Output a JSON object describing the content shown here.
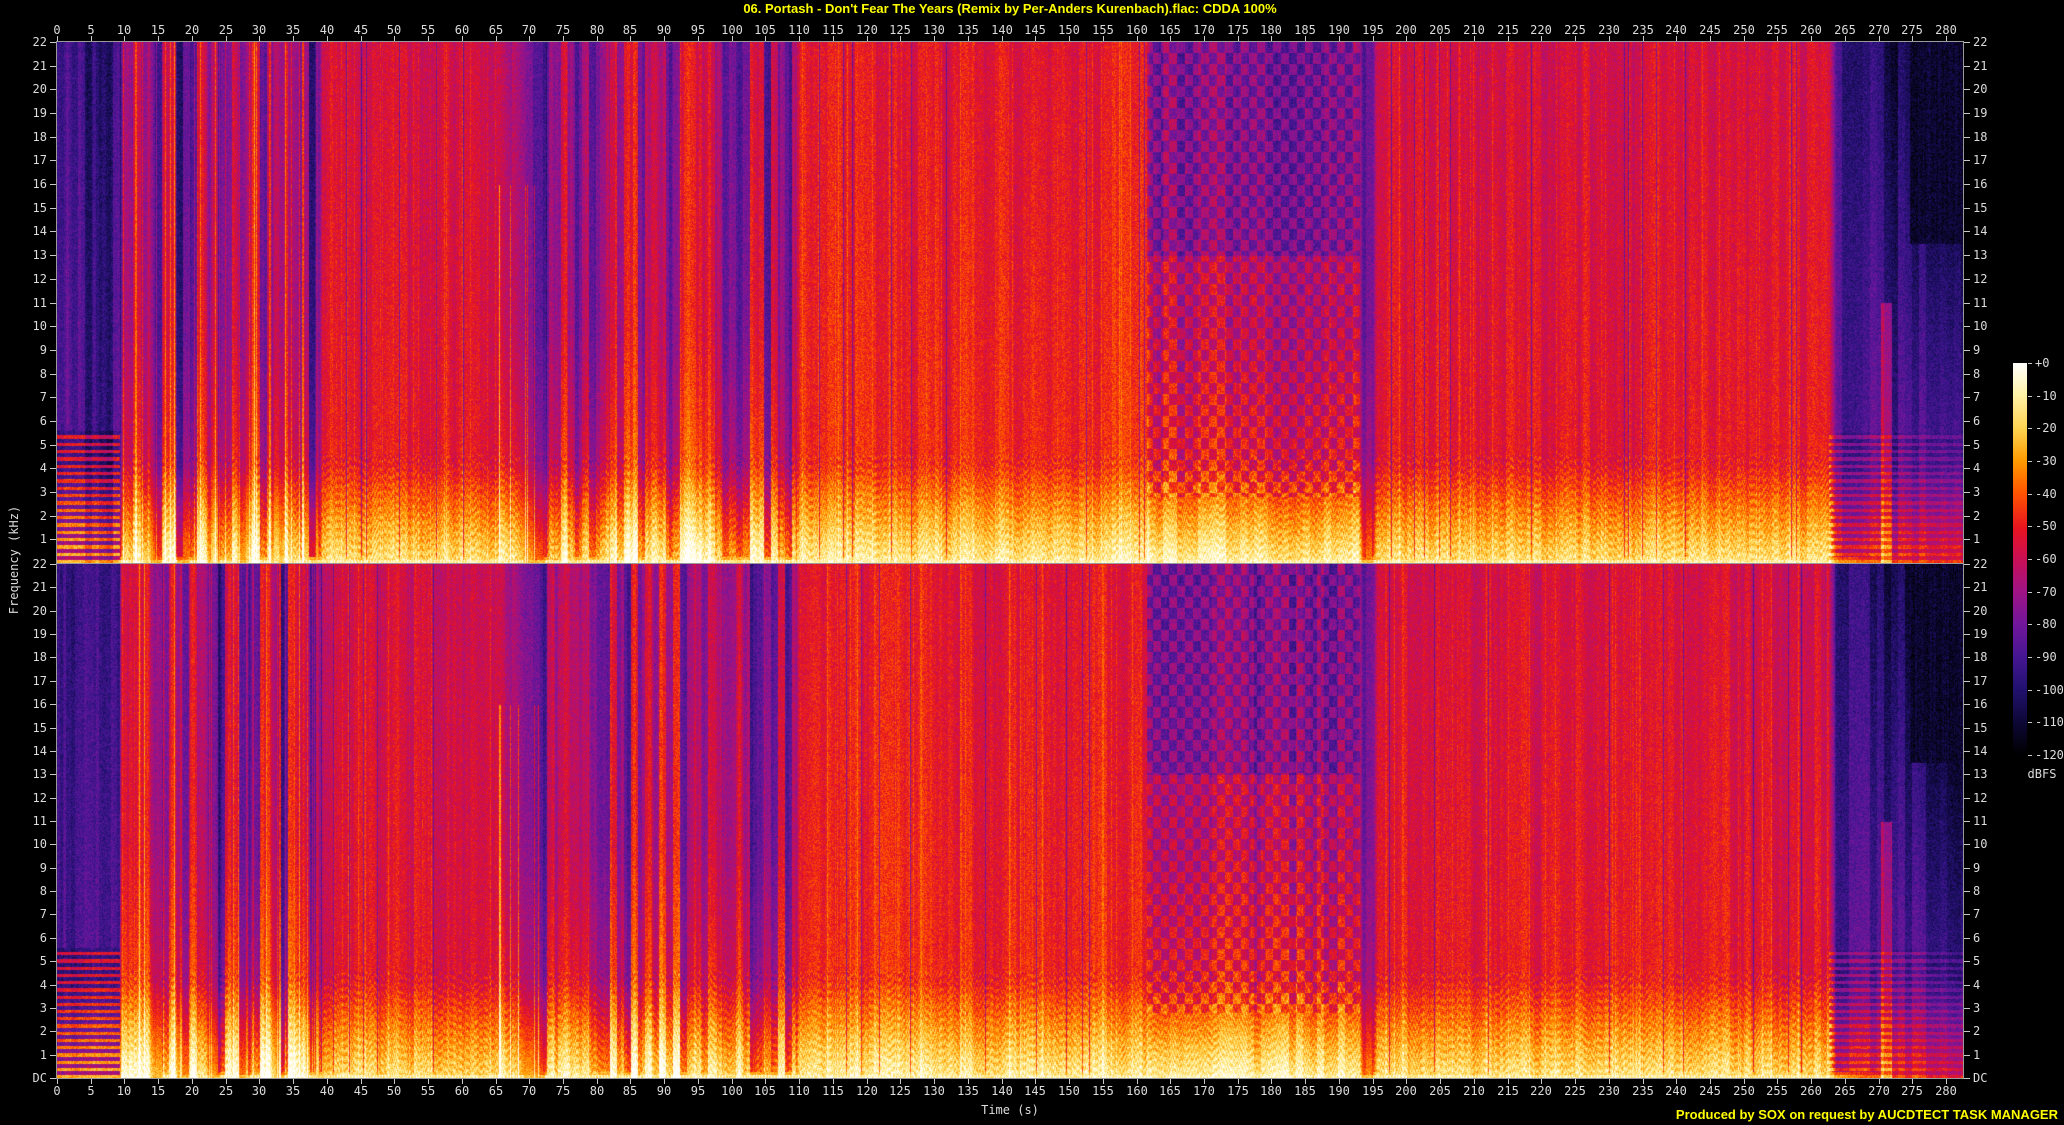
{
  "title": "06. Portash - Don't Fear The Years (Remix by Per-Anders Kurenbach).flac: CDDA 100%",
  "footer": "Produced by SOX on request by AUCDTECT TASK MANAGER",
  "colors": {
    "background": "#000000",
    "title_text": "#ffff00",
    "footer_text": "#ffff00",
    "axis_line": "#9a9a9a",
    "tick_mark": "#c8c8c8",
    "tick_label": "#dcdcdc"
  },
  "chart_data": {
    "type": "heatmap",
    "subtype": "audio-spectrogram",
    "title": "06. Portash - Don't Fear The Years (Remix by Per-Anders Kurenbach).flac: CDDA 100%",
    "xlabel": "Time (s)",
    "ylabel": "Frequency (kHz)",
    "x_range_s": [
      0,
      282.5
    ],
    "x_ticks": [
      0,
      5,
      10,
      15,
      20,
      25,
      30,
      35,
      40,
      45,
      50,
      55,
      60,
      65,
      70,
      75,
      80,
      85,
      90,
      95,
      100,
      105,
      110,
      115,
      120,
      125,
      130,
      135,
      140,
      145,
      150,
      155,
      160,
      165,
      170,
      175,
      180,
      185,
      190,
      195,
      200,
      205,
      210,
      215,
      220,
      225,
      230,
      235,
      240,
      245,
      250,
      255,
      260,
      265,
      270,
      275,
      280
    ],
    "y_range_khz": [
      0,
      22
    ],
    "y_ticks_khz": [
      22,
      21,
      20,
      19,
      18,
      17,
      16,
      15,
      14,
      13,
      12,
      11,
      10,
      9,
      8,
      7,
      6,
      5,
      4,
      3,
      2,
      1
    ],
    "y_dc_label": "DC",
    "channels": [
      "channel-1",
      "channel-2"
    ],
    "grid": false,
    "colorbar": {
      "label": "dBFS",
      "ticks": [
        "+0",
        "-10",
        "-20",
        "-30",
        "-40",
        "-50",
        "-60",
        "-70",
        "-80",
        "-90",
        "-100",
        "-110",
        "-120"
      ],
      "db_range": [
        0,
        -120
      ],
      "palette": [
        {
          "v": 0.0,
          "c": "#000000"
        },
        {
          "v": 0.08,
          "c": "#0c0733"
        },
        {
          "v": 0.17,
          "c": "#221170"
        },
        {
          "v": 0.25,
          "c": "#451693"
        },
        {
          "v": 0.33,
          "c": "#6f169b"
        },
        {
          "v": 0.42,
          "c": "#a21384"
        },
        {
          "v": 0.5,
          "c": "#c80f55"
        },
        {
          "v": 0.58,
          "c": "#e8141f"
        },
        {
          "v": 0.67,
          "c": "#ff5500"
        },
        {
          "v": 0.75,
          "c": "#ff9a00"
        },
        {
          "v": 0.83,
          "c": "#ffd24e"
        },
        {
          "v": 0.92,
          "c": "#fff4a8"
        },
        {
          "v": 1.0,
          "c": "#ffffff"
        }
      ]
    },
    "envelope_segments": [
      {
        "t0": 0.0,
        "t1": 9.3,
        "level": 0.27,
        "texture": "intro-stripes",
        "ramp": 0.0
      },
      {
        "t0": 9.3,
        "t1": 13.5,
        "level": 0.5,
        "texture": "columns",
        "ramp": 0.3
      },
      {
        "t0": 13.5,
        "t1": 15.4,
        "level": 0.37,
        "texture": "columns",
        "ramp": 0.4
      },
      {
        "t0": 15.4,
        "t1": 17.4,
        "level": 0.5,
        "texture": "columns",
        "ramp": 0.4
      },
      {
        "t0": 17.4,
        "t1": 19.4,
        "level": 0.38,
        "texture": "columns",
        "ramp": 0.4
      },
      {
        "t0": 19.4,
        "t1": 22.0,
        "level": 0.51,
        "texture": "columns",
        "ramp": 0.4
      },
      {
        "t0": 22.0,
        "t1": 24.0,
        "level": 0.39,
        "texture": "columns",
        "ramp": 0.4
      },
      {
        "t0": 24.0,
        "t1": 26.5,
        "level": 0.51,
        "texture": "columns",
        "ramp": 0.4
      },
      {
        "t0": 26.5,
        "t1": 28.5,
        "level": 0.39,
        "texture": "columns",
        "ramp": 0.4
      },
      {
        "t0": 28.5,
        "t1": 31.5,
        "level": 0.52,
        "texture": "columns",
        "ramp": 0.4
      },
      {
        "t0": 31.5,
        "t1": 33.5,
        "level": 0.4,
        "texture": "columns",
        "ramp": 0.4
      },
      {
        "t0": 33.5,
        "t1": 36.5,
        "level": 0.52,
        "texture": "columns",
        "ramp": 0.4
      },
      {
        "t0": 36.5,
        "t1": 38.8,
        "level": 0.42,
        "texture": "columns",
        "ramp": 0.4
      },
      {
        "t0": 38.8,
        "t1": 65.5,
        "level": 0.575,
        "texture": "solid",
        "ramp": 0.8
      },
      {
        "t0": 65.5,
        "t1": 72.0,
        "level": 0.38,
        "texture": "quiet",
        "ramp": 4.0
      },
      {
        "t0": 72.0,
        "t1": 95.0,
        "level": 0.5,
        "texture": "mix",
        "ramp": 1.5
      },
      {
        "t0": 95.0,
        "t1": 109.5,
        "level": 0.45,
        "texture": "mix",
        "ramp": 1.0
      },
      {
        "t0": 109.5,
        "t1": 161.5,
        "level": 0.6,
        "texture": "solid-bright",
        "ramp": 0.6
      },
      {
        "t0": 161.5,
        "t1": 193.0,
        "level": 0.52,
        "texture": "checker",
        "ramp": 0.6
      },
      {
        "t0": 193.0,
        "t1": 194.8,
        "level": 0.33,
        "texture": "quiet",
        "ramp": 0.5
      },
      {
        "t0": 194.8,
        "t1": 262.5,
        "level": 0.585,
        "texture": "solid",
        "ramp": 0.8
      },
      {
        "t0": 262.5,
        "t1": 282.5,
        "level": 0.3,
        "texture": "outro-fade",
        "ramp": 1.2
      }
    ]
  }
}
